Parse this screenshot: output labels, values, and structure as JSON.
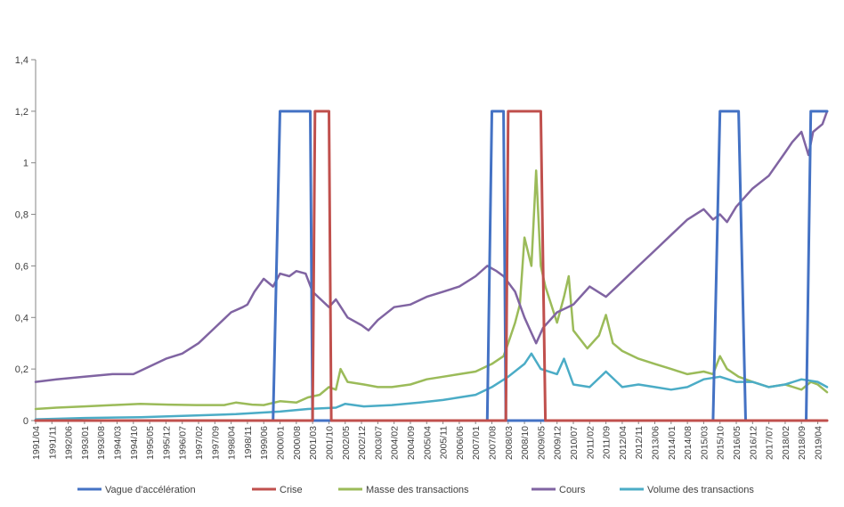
{
  "chart_data": {
    "type": "line",
    "ylim": [
      0,
      1.4
    ],
    "yticks": [
      "0",
      "0,2",
      "0,4",
      "0,6",
      "0,8",
      "1",
      "1,2",
      "1,4"
    ],
    "ytick_values": [
      0,
      0.2,
      0.4,
      0.6,
      0.8,
      1.0,
      1.2,
      1.4
    ],
    "grid": false,
    "legend_position": "bottom",
    "x_start": "1991/04",
    "x_end": "2019/08",
    "x_tick_labels": [
      "1991/04",
      "1991/11",
      "1992/06",
      "1993/01",
      "1993/08",
      "1994/03",
      "1994/10",
      "1995/05",
      "1995/12",
      "1996/07",
      "1997/02",
      "1997/09",
      "1998/04",
      "1998/11",
      "1999/06",
      "2000/01",
      "2000/08",
      "2001/03",
      "2001/10",
      "2002/05",
      "2002/12",
      "2003/07",
      "2004/02",
      "2004/09",
      "2005/04",
      "2005/11",
      "2006/06",
      "2007/01",
      "2007/08",
      "2008/03",
      "2008/10",
      "2009/05",
      "2009/12",
      "2010/07",
      "2011/02",
      "2011/09",
      "2012/04",
      "2012/11",
      "2013/06",
      "2014/01",
      "2014/08",
      "2015/03",
      "2015/10",
      "2016/05",
      "2016/12",
      "2017/07",
      "2018/02",
      "2018/09",
      "2019/04"
    ],
    "series": [
      {
        "name": "Vague d'accélération",
        "color": "#4472C4",
        "kind": "step",
        "points": [
          [
            "1991/04",
            0
          ],
          [
            "1999/10",
            0
          ],
          [
            "2000/01",
            1.2
          ],
          [
            "2001/02",
            1.2
          ],
          [
            "2001/03",
            0
          ],
          [
            "2007/06",
            0
          ],
          [
            "2007/08",
            1.2
          ],
          [
            "2008/01",
            1.2
          ],
          [
            "2008/02",
            0
          ],
          [
            "2015/07",
            0
          ],
          [
            "2015/10",
            1.2
          ],
          [
            "2016/06",
            1.2
          ],
          [
            "2016/09",
            0
          ],
          [
            "2018/11",
            0
          ],
          [
            "2019/01",
            1.2
          ],
          [
            "2019/08",
            1.2
          ]
        ]
      },
      {
        "name": "Crise",
        "color": "#C0504D",
        "kind": "step",
        "points": [
          [
            "1991/04",
            0
          ],
          [
            "2001/03",
            0
          ],
          [
            "2001/04",
            1.2
          ],
          [
            "2001/10",
            1.2
          ],
          [
            "2001/11",
            0
          ],
          [
            "2008/02",
            0
          ],
          [
            "2008/03",
            1.2
          ],
          [
            "2009/05",
            1.2
          ],
          [
            "2009/07",
            0
          ],
          [
            "2019/08",
            0
          ]
        ]
      },
      {
        "name": "Masse des transactions",
        "color": "#9BBB59",
        "kind": "line",
        "points": [
          [
            "1991/04",
            0.045
          ],
          [
            "1992/01",
            0.05
          ],
          [
            "1993/01",
            0.055
          ],
          [
            "1994/01",
            0.06
          ],
          [
            "1995/01",
            0.065
          ],
          [
            "1996/01",
            0.062
          ],
          [
            "1997/01",
            0.06
          ],
          [
            "1998/01",
            0.06
          ],
          [
            "1998/06",
            0.07
          ],
          [
            "1999/01",
            0.062
          ],
          [
            "1999/06",
            0.06
          ],
          [
            "2000/01",
            0.075
          ],
          [
            "2000/08",
            0.07
          ],
          [
            "2001/01",
            0.09
          ],
          [
            "2001/06",
            0.1
          ],
          [
            "2001/10",
            0.13
          ],
          [
            "2002/01",
            0.12
          ],
          [
            "2002/03",
            0.2
          ],
          [
            "2002/06",
            0.15
          ],
          [
            "2003/01",
            0.14
          ],
          [
            "2003/07",
            0.13
          ],
          [
            "2004/01",
            0.13
          ],
          [
            "2004/09",
            0.14
          ],
          [
            "2005/04",
            0.16
          ],
          [
            "2005/11",
            0.17
          ],
          [
            "2006/06",
            0.18
          ],
          [
            "2007/01",
            0.19
          ],
          [
            "2007/08",
            0.22
          ],
          [
            "2008/01",
            0.25
          ],
          [
            "2008/03",
            0.3
          ],
          [
            "2008/06",
            0.38
          ],
          [
            "2008/08",
            0.45
          ],
          [
            "2008/10",
            0.71
          ],
          [
            "2009/01",
            0.6
          ],
          [
            "2009/03",
            0.97
          ],
          [
            "2009/05",
            0.6
          ],
          [
            "2009/07",
            0.52
          ],
          [
            "2009/12",
            0.38
          ],
          [
            "2010/03",
            0.48
          ],
          [
            "2010/05",
            0.56
          ],
          [
            "2010/07",
            0.35
          ],
          [
            "2011/01",
            0.28
          ],
          [
            "2011/06",
            0.33
          ],
          [
            "2011/09",
            0.41
          ],
          [
            "2011/12",
            0.3
          ],
          [
            "2012/04",
            0.27
          ],
          [
            "2012/11",
            0.24
          ],
          [
            "2013/06",
            0.22
          ],
          [
            "2014/01",
            0.2
          ],
          [
            "2014/08",
            0.18
          ],
          [
            "2015/03",
            0.19
          ],
          [
            "2015/07",
            0.18
          ],
          [
            "2015/10",
            0.25
          ],
          [
            "2016/01",
            0.2
          ],
          [
            "2016/06",
            0.17
          ],
          [
            "2016/12",
            0.15
          ],
          [
            "2017/07",
            0.13
          ],
          [
            "2018/02",
            0.14
          ],
          [
            "2018/09",
            0.12
          ],
          [
            "2019/01",
            0.15
          ],
          [
            "2019/04",
            0.14
          ],
          [
            "2019/08",
            0.11
          ]
        ]
      },
      {
        "name": "Cours",
        "color": "#8064A2",
        "kind": "line",
        "points": [
          [
            "1991/04",
            0.15
          ],
          [
            "1992/01",
            0.16
          ],
          [
            "1993/01",
            0.17
          ],
          [
            "1994/01",
            0.18
          ],
          [
            "1994/10",
            0.18
          ],
          [
            "1995/05",
            0.21
          ],
          [
            "1995/12",
            0.24
          ],
          [
            "1996/07",
            0.26
          ],
          [
            "1997/02",
            0.3
          ],
          [
            "1997/09",
            0.36
          ],
          [
            "1998/04",
            0.42
          ],
          [
            "1998/09",
            0.44
          ],
          [
            "1998/11",
            0.45
          ],
          [
            "1999/02",
            0.5
          ],
          [
            "1999/06",
            0.55
          ],
          [
            "1999/10",
            0.52
          ],
          [
            "2000/01",
            0.57
          ],
          [
            "2000/05",
            0.56
          ],
          [
            "2000/08",
            0.58
          ],
          [
            "2000/12",
            0.57
          ],
          [
            "2001/03",
            0.5
          ],
          [
            "2001/10",
            0.44
          ],
          [
            "2002/01",
            0.47
          ],
          [
            "2002/06",
            0.4
          ],
          [
            "2002/12",
            0.37
          ],
          [
            "2003/03",
            0.35
          ],
          [
            "2003/07",
            0.39
          ],
          [
            "2004/02",
            0.44
          ],
          [
            "2004/09",
            0.45
          ],
          [
            "2005/04",
            0.48
          ],
          [
            "2005/11",
            0.5
          ],
          [
            "2006/06",
            0.52
          ],
          [
            "2007/01",
            0.56
          ],
          [
            "2007/06",
            0.6
          ],
          [
            "2007/10",
            0.58
          ],
          [
            "2008/01",
            0.56
          ],
          [
            "2008/06",
            0.5
          ],
          [
            "2008/10",
            0.4
          ],
          [
            "2009/01",
            0.34
          ],
          [
            "2009/03",
            0.3
          ],
          [
            "2009/06",
            0.36
          ],
          [
            "2009/12",
            0.42
          ],
          [
            "2010/07",
            0.45
          ],
          [
            "2011/02",
            0.52
          ],
          [
            "2011/09",
            0.48
          ],
          [
            "2012/04",
            0.54
          ],
          [
            "2012/11",
            0.6
          ],
          [
            "2013/06",
            0.66
          ],
          [
            "2014/01",
            0.72
          ],
          [
            "2014/08",
            0.78
          ],
          [
            "2015/03",
            0.82
          ],
          [
            "2015/07",
            0.78
          ],
          [
            "2015/10",
            0.8
          ],
          [
            "2016/01",
            0.77
          ],
          [
            "2016/05",
            0.83
          ],
          [
            "2016/12",
            0.9
          ],
          [
            "2017/07",
            0.95
          ],
          [
            "2018/02",
            1.04
          ],
          [
            "2018/05",
            1.08
          ],
          [
            "2018/09",
            1.12
          ],
          [
            "2018/12",
            1.03
          ],
          [
            "2019/02",
            1.12
          ],
          [
            "2019/06",
            1.15
          ],
          [
            "2019/08",
            1.2
          ]
        ]
      },
      {
        "name": "Volume des transactions",
        "color": "#4BACC6",
        "kind": "line",
        "points": [
          [
            "1991/04",
            0.005
          ],
          [
            "1993/01",
            0.01
          ],
          [
            "1995/01",
            0.013
          ],
          [
            "1997/01",
            0.02
          ],
          [
            "1998/06",
            0.025
          ],
          [
            "2000/01",
            0.035
          ],
          [
            "2001/01",
            0.045
          ],
          [
            "2002/01",
            0.05
          ],
          [
            "2002/05",
            0.065
          ],
          [
            "2003/01",
            0.055
          ],
          [
            "2004/01",
            0.06
          ],
          [
            "2005/01",
            0.07
          ],
          [
            "2005/11",
            0.08
          ],
          [
            "2006/06",
            0.09
          ],
          [
            "2007/01",
            0.1
          ],
          [
            "2007/08",
            0.13
          ],
          [
            "2008/03",
            0.17
          ],
          [
            "2008/10",
            0.22
          ],
          [
            "2009/01",
            0.26
          ],
          [
            "2009/05",
            0.2
          ],
          [
            "2009/12",
            0.18
          ],
          [
            "2010/03",
            0.24
          ],
          [
            "2010/07",
            0.14
          ],
          [
            "2011/02",
            0.13
          ],
          [
            "2011/09",
            0.19
          ],
          [
            "2012/04",
            0.13
          ],
          [
            "2012/11",
            0.14
          ],
          [
            "2013/06",
            0.13
          ],
          [
            "2014/01",
            0.12
          ],
          [
            "2014/08",
            0.13
          ],
          [
            "2015/03",
            0.16
          ],
          [
            "2015/10",
            0.17
          ],
          [
            "2016/05",
            0.15
          ],
          [
            "2016/12",
            0.15
          ],
          [
            "2017/07",
            0.13
          ],
          [
            "2018/02",
            0.14
          ],
          [
            "2018/09",
            0.16
          ],
          [
            "2019/04",
            0.15
          ],
          [
            "2019/08",
            0.13
          ]
        ]
      }
    ]
  }
}
